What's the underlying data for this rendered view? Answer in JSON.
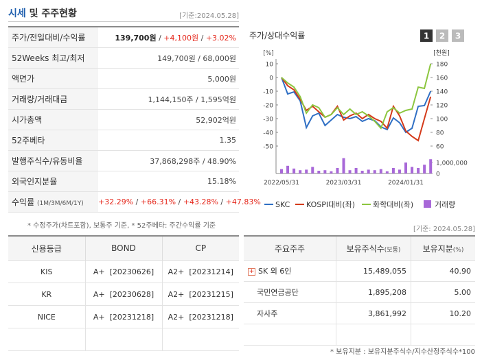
{
  "header": {
    "title": "시세",
    "title_rest": "및 주주현황",
    "date": "[기준:2024.05.28]"
  },
  "price_table": {
    "rows": [
      {
        "label": "주가/전일대비/수익률",
        "value": [
          {
            "text": "139,700원",
            "bold": true
          },
          {
            "text": " / "
          },
          {
            "text": "+4,100원",
            "color": "#e5271b"
          },
          {
            "text": " / "
          },
          {
            "text": "+3.02%",
            "color": "#e5271b"
          }
        ]
      },
      {
        "label": "52Weeks 최고/최저",
        "value": [
          {
            "text": "149,700원 / 68,000원"
          }
        ]
      },
      {
        "label": "액면가",
        "value": [
          {
            "text": "5,000원"
          }
        ]
      },
      {
        "label": "거래량/거래대금",
        "value": [
          {
            "text": "1,144,150주 / 1,595억원"
          }
        ]
      },
      {
        "label": "시가총액",
        "value": [
          {
            "text": "52,902억원"
          }
        ]
      },
      {
        "label": "52주베타",
        "value": [
          {
            "text": "1.35"
          }
        ]
      },
      {
        "label": "발행주식수/유동비율",
        "value": [
          {
            "text": "37,868,298주 / 48.90%"
          }
        ]
      },
      {
        "label": "외국인지분율",
        "value": [
          {
            "text": "15.18%"
          }
        ]
      },
      {
        "label": "수익률",
        "label_sub": "(1M/3M/6M/1Y)",
        "value": [
          {
            "text": "+32.29%",
            "color": "#e5271b"
          },
          {
            "text": " / "
          },
          {
            "text": "+66.31%",
            "color": "#e5271b"
          },
          {
            "text": " / "
          },
          {
            "text": "+43.28%",
            "color": "#e5271b"
          },
          {
            "text": " / "
          },
          {
            "text": "+47.83%",
            "color": "#e5271b"
          }
        ]
      }
    ],
    "note": "* 수정주가(차트포함), 보통주 기준, * 52주베타: 주간수익률 기준"
  },
  "chart_tabs": [
    "1",
    "2",
    "3"
  ],
  "chart_data": {
    "type": "line",
    "title": "주가/상대수익률",
    "y_label": "[%]",
    "y2_label": "[천원]",
    "categories": [
      "2022/05/31",
      null,
      null,
      null,
      null,
      null,
      null,
      null,
      null,
      null,
      "2023/03/31",
      null,
      null,
      null,
      null,
      null,
      null,
      null,
      null,
      null,
      "2024/01/31",
      null,
      null,
      null,
      null
    ],
    "ylim": [
      -50,
      10
    ],
    "yticks": [
      10,
      0,
      -10,
      -20,
      -30,
      -40,
      -50
    ],
    "y2lim": [
      60,
      180
    ],
    "y2ticks": [
      180,
      160,
      140,
      120,
      100,
      80,
      60
    ],
    "y3lim": [
      0,
      1500000
    ],
    "y3ticks": [
      {
        "value": 1000000,
        "label": "1,000,000"
      },
      0
    ],
    "series": [
      {
        "name": "SKC",
        "color": "#2f6fc4",
        "axis": "y2",
        "values": [
          160,
          136,
          139,
          126,
          87,
          104,
          108,
          90,
          98,
          106,
          102,
          100,
          103,
          96,
          100,
          97,
          88,
          84,
          101,
          94,
          80,
          86,
          118,
          119,
          140
        ]
      },
      {
        "name": "KOSPI대비(좌)",
        "color": "#d43a1a",
        "values": [
          0,
          -6,
          -9,
          -16,
          -24,
          -21,
          -25,
          -29,
          -27,
          -21,
          -31,
          -28,
          -26,
          -30,
          -27,
          -30,
          -32,
          -37,
          -21,
          -28,
          -39,
          -43,
          -46,
          -30,
          -14
        ]
      },
      {
        "name": "화학대비(좌)",
        "color": "#8cc63f",
        "values": [
          0,
          -4,
          -7,
          -14,
          -26,
          -20,
          -22,
          -29,
          -27,
          -22,
          -27,
          -23,
          -27,
          -25,
          -28,
          -32,
          -37,
          -25,
          -22,
          -26,
          -24,
          -23,
          -7,
          -8,
          10
        ]
      },
      {
        "name": "거래량",
        "color": "#a868d8",
        "type": "bar",
        "axis": "y3",
        "values": [
          400000,
          700000,
          450000,
          300000,
          350000,
          600000,
          250000,
          300000,
          200000,
          500000,
          1400000,
          300000,
          500000,
          250000,
          350000,
          300000,
          400000,
          200000,
          500000,
          350000,
          1000000,
          600000,
          500000,
          800000,
          1300000
        ]
      }
    ]
  },
  "credit_table": {
    "header": [
      "신용등급",
      "BOND",
      "CP"
    ],
    "rows": [
      [
        "KIS",
        "A+  [20230626]",
        "A2+  [20231214]"
      ],
      [
        "KR",
        "A+  [20230628]",
        "A2+  [20231215]"
      ],
      [
        "NICE",
        "A+  [20231218]",
        "A2+  [20231218]"
      ]
    ]
  },
  "holders_table": {
    "date": "[기준: 2024.05.28]",
    "header": [
      {
        "text": "주요주주"
      },
      {
        "text": "보유주식수",
        "sub": "(보통)"
      },
      {
        "text": "보유지분",
        "sub": "(%)"
      }
    ],
    "rows": [
      [
        "SK 외 6인",
        "15,489,055",
        "40.90"
      ],
      [
        "국민연금공단",
        "1,895,208",
        "5.00"
      ],
      [
        "자사주",
        "3,861,992",
        "10.20"
      ]
    ],
    "note": "* 보유지분 : 보유지분주식수/지수산정주식수*100"
  }
}
